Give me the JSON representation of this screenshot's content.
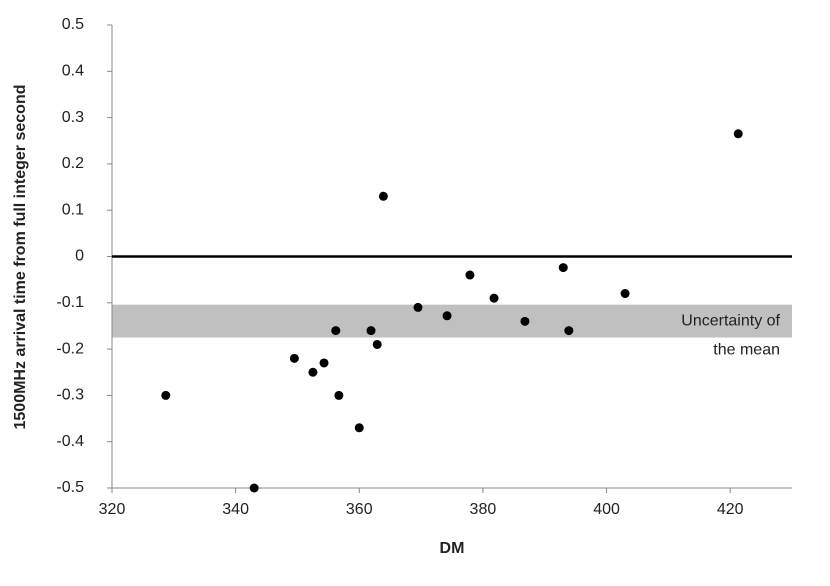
{
  "chart_data": {
    "type": "scatter",
    "x_label": "DM",
    "y_label": "1500MHz arrival time from full integer second",
    "x": [
      328.7,
      343.0,
      349.5,
      352.5,
      354.3,
      356.2,
      356.7,
      360.0,
      361.9,
      362.9,
      363.9,
      369.5,
      374.2,
      377.9,
      381.8,
      386.8,
      393.0,
      393.9,
      403.0,
      421.3
    ],
    "values": [
      -0.3,
      -0.5,
      -0.22,
      -0.25,
      -0.23,
      -0.16,
      -0.3,
      -0.37,
      -0.16,
      -0.19,
      0.13,
      -0.11,
      -0.128,
      -0.04,
      -0.09,
      -0.14,
      -0.024,
      -0.16,
      -0.08,
      0.265
    ],
    "color": "#000000",
    "xlim": [
      320,
      430
    ],
    "xticks": [
      320,
      340,
      360,
      380,
      400,
      420
    ],
    "ylim": [
      -0.5,
      0.5
    ],
    "yticks": [
      -0.5,
      -0.4,
      -0.3,
      -0.2,
      -0.1,
      0,
      0.1,
      0.2,
      0.3,
      0.4,
      0.5
    ],
    "reference_line": 0,
    "band": [
      -0.175,
      -0.104
    ],
    "band_color": "#c0c0c0",
    "annotation": [
      "Uncertainty of",
      "the mean"
    ],
    "grid": false
  }
}
